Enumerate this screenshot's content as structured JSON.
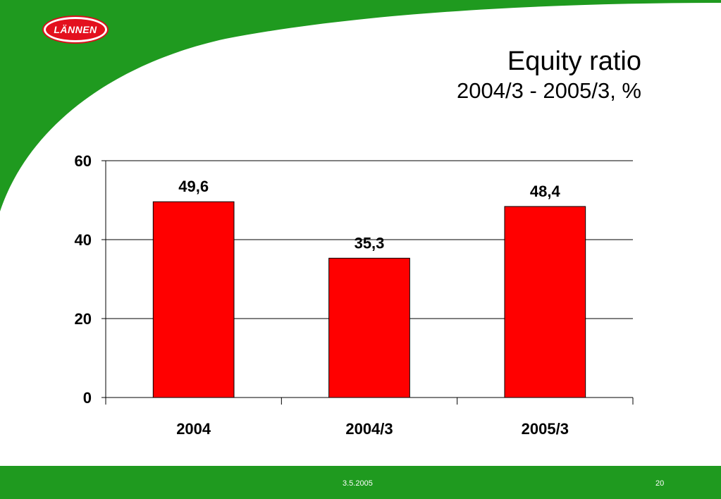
{
  "slide": {
    "title": "Equity ratio",
    "subtitle": "2004/3 - 2005/3, %",
    "logo_text": "LÄNNEN",
    "footer_date": "3.5.2005",
    "page_number": "20",
    "colors": {
      "green": "#1f9a1f",
      "bar": "#ff0000",
      "logo_red": "#e3101e"
    }
  },
  "chart_data": {
    "type": "bar",
    "title": "Equity ratio",
    "subtitle": "2004/3 - 2005/3, %",
    "categories": [
      "2004",
      "2004/3",
      "2005/3"
    ],
    "values": [
      49.6,
      35.3,
      48.4
    ],
    "value_labels": [
      "49,6",
      "35,3",
      "48,4"
    ],
    "ylim": [
      0,
      60
    ],
    "yticks": [
      0,
      20,
      40,
      60
    ],
    "grid": true,
    "legend": "none"
  }
}
